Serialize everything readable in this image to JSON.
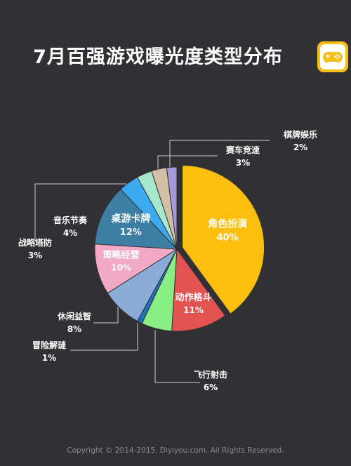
{
  "title": "7月百强游戏曝光度类型分布",
  "footer": "Copyright © 2014-2015. Diyiyou.com. All Rights Reserved.",
  "chart_data": {
    "type": "pie",
    "title": "7月百强游戏曝光度类型分布",
    "categories": [
      "角色扮演",
      "动作格斗",
      "飞行射击",
      "冒险解谜",
      "休闲益智",
      "策略经营",
      "桌游卡牌",
      "音乐节奏",
      "战略塔防",
      "赛车竞速",
      "棋牌娱乐"
    ],
    "values": [
      40,
      11,
      6,
      1,
      8,
      10,
      12,
      4,
      3,
      3,
      2
    ],
    "value_labels": [
      "40%",
      "11%",
      "6%",
      "1%",
      "8%",
      "10%",
      "12%",
      "4%",
      "3%",
      "3%",
      "2%"
    ],
    "colors": [
      "#fdbf0f",
      "#e35352",
      "#89ee84",
      "#1f6fba",
      "#89acd9",
      "#f2a9c6",
      "#3e7fa6",
      "#3eaaf3",
      "#a6e8cc",
      "#d2c0a6",
      "#a798d7"
    ],
    "start_angle": "12 o'clock",
    "direction": "clockwise"
  }
}
